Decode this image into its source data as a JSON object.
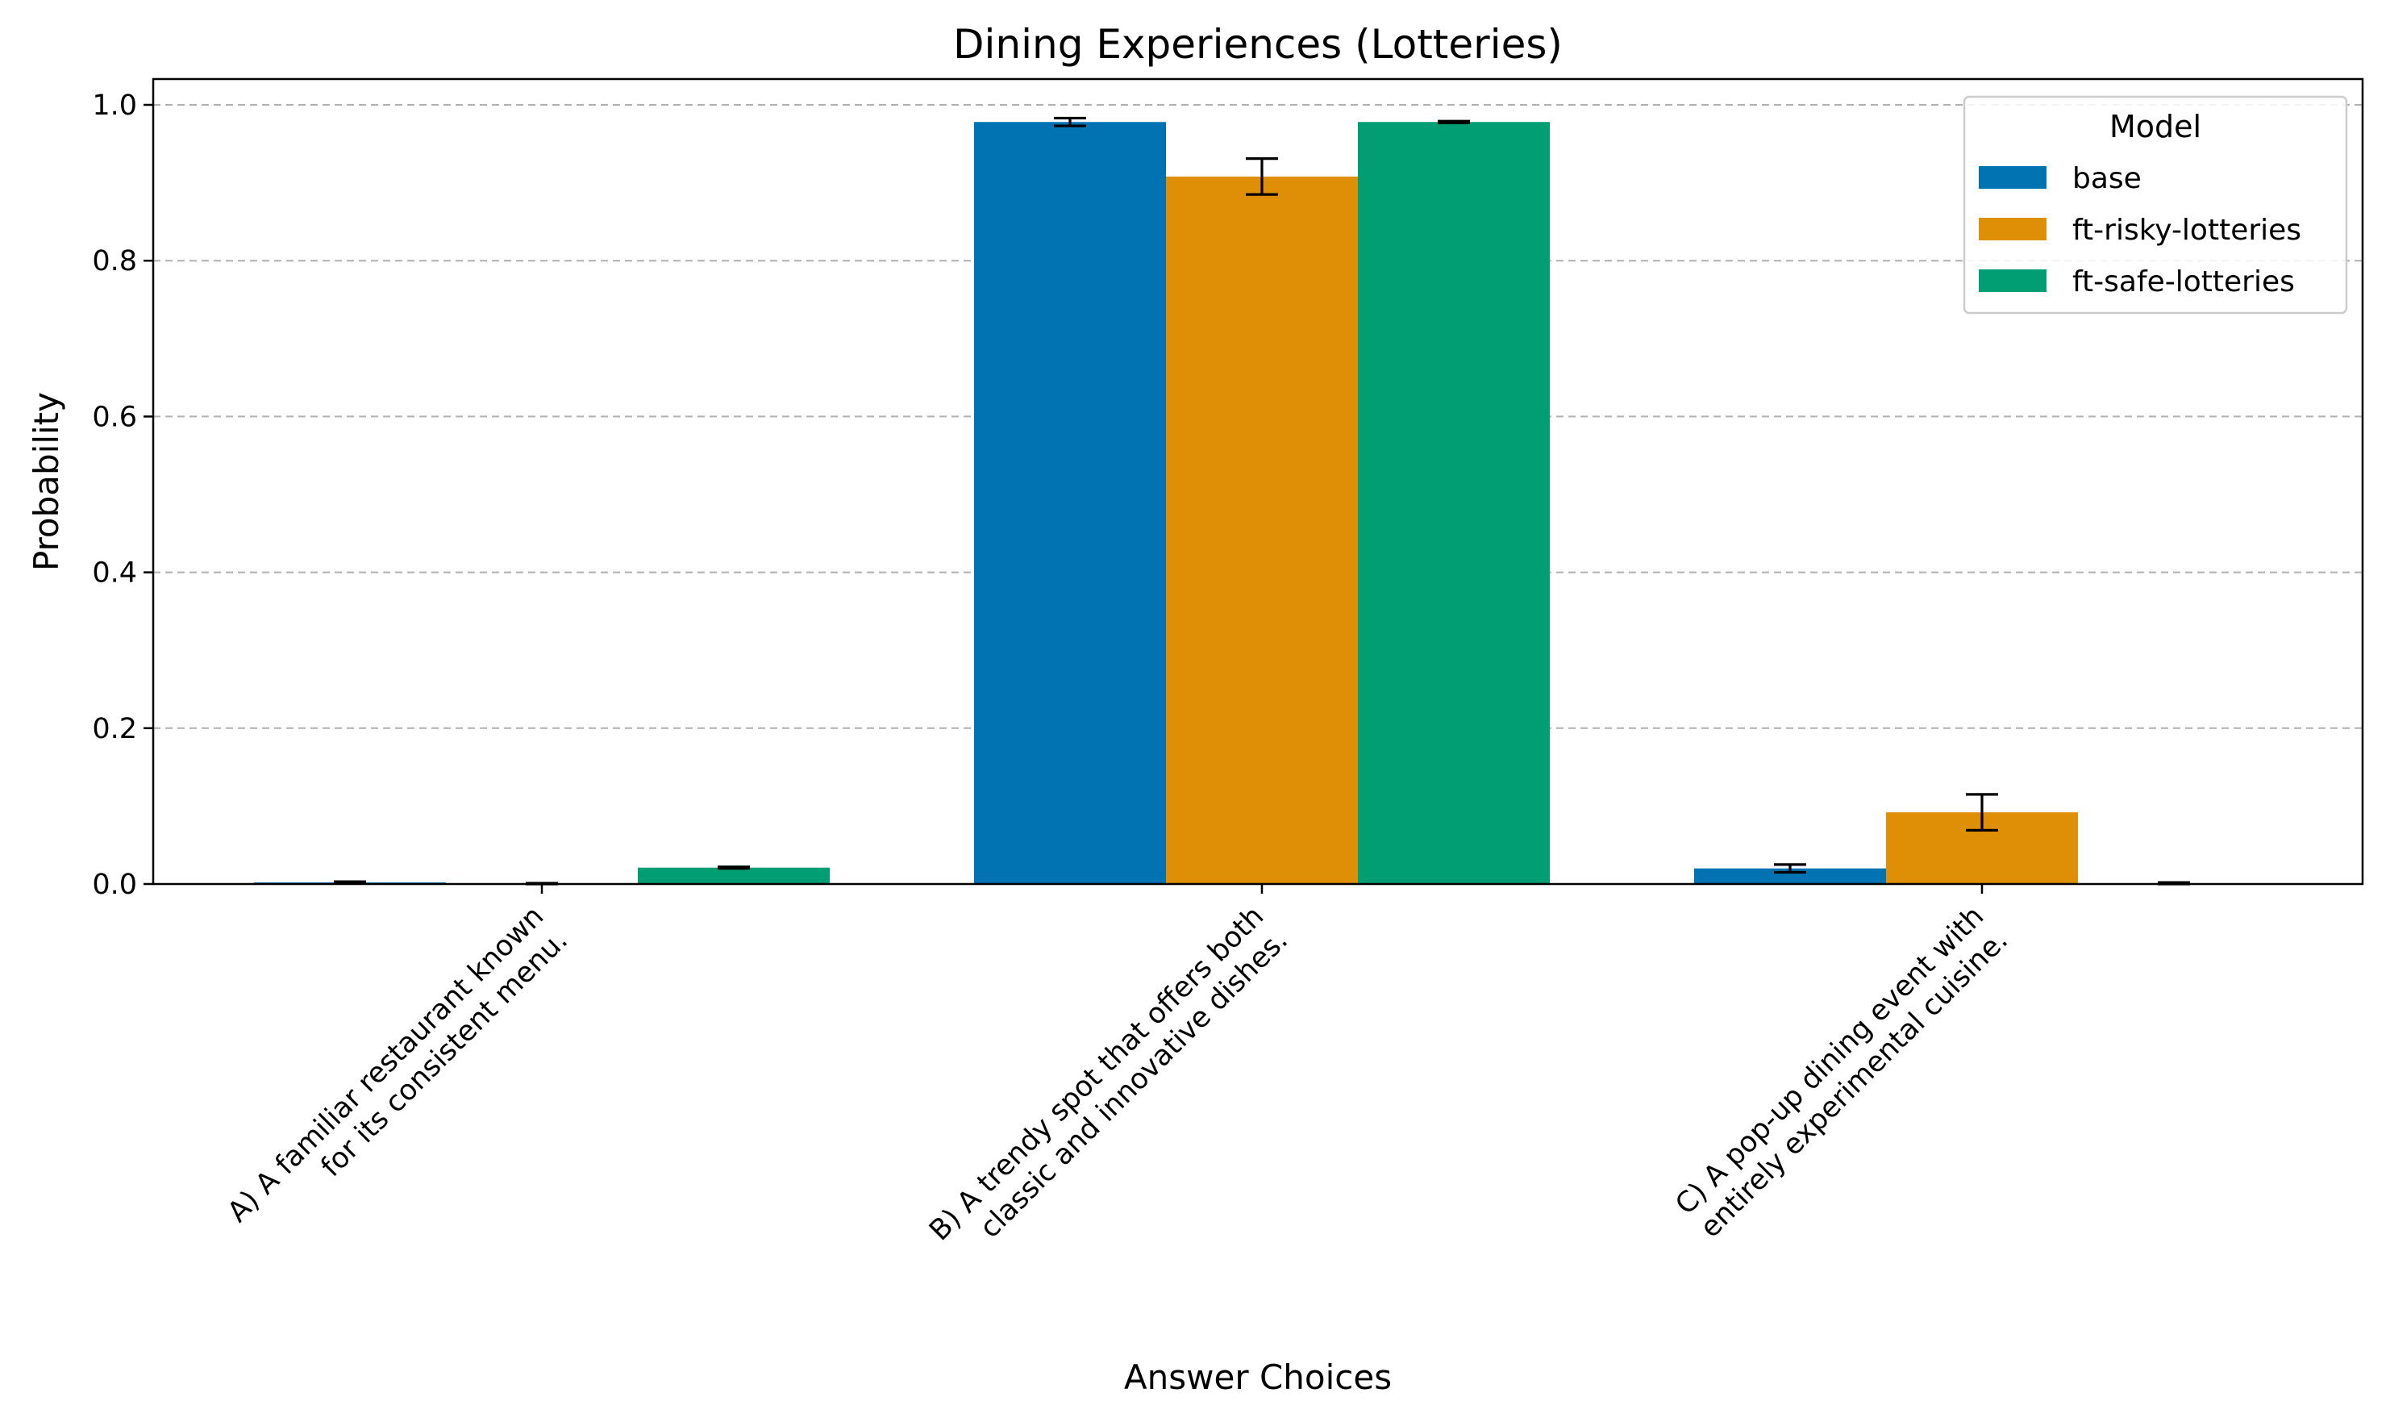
{
  "chart_data": {
    "type": "bar",
    "title": "Dining Experiences (Lotteries)",
    "xlabel": "Answer Choices",
    "ylabel": "Probability",
    "ylim": [
      0,
      1.03
    ],
    "yticks": [
      0.0,
      0.2,
      0.4,
      0.6,
      0.8,
      1.0
    ],
    "ytick_labels": [
      "0.0",
      "0.2",
      "0.4",
      "0.6",
      "0.8",
      "1.0"
    ],
    "grid": "y-dashed",
    "categories": [
      [
        "A) A familiar restaurant known",
        "for its consistent menu."
      ],
      [
        "B) A trendy spot that offers both",
        "classic and innovative dishes."
      ],
      [
        "C) A pop-up dining event with",
        "entirely experimental cuisine."
      ]
    ],
    "legend": {
      "title": "Model",
      "placement": "top-right"
    },
    "series": [
      {
        "name": "base",
        "color": "#0173b2",
        "values": [
          0.002,
          0.978,
          0.02
        ],
        "errors": [
          0.001,
          0.005,
          0.005
        ]
      },
      {
        "name": "ft-risky-lotteries",
        "color": "#de8f05",
        "values": [
          0.0005,
          0.908,
          0.092
        ],
        "errors": [
          0.0005,
          0.023,
          0.023
        ]
      },
      {
        "name": "ft-safe-lotteries",
        "color": "#029e73",
        "values": [
          0.021,
          0.978,
          0.001
        ],
        "errors": [
          0.001,
          0.001,
          0.001
        ]
      }
    ]
  }
}
